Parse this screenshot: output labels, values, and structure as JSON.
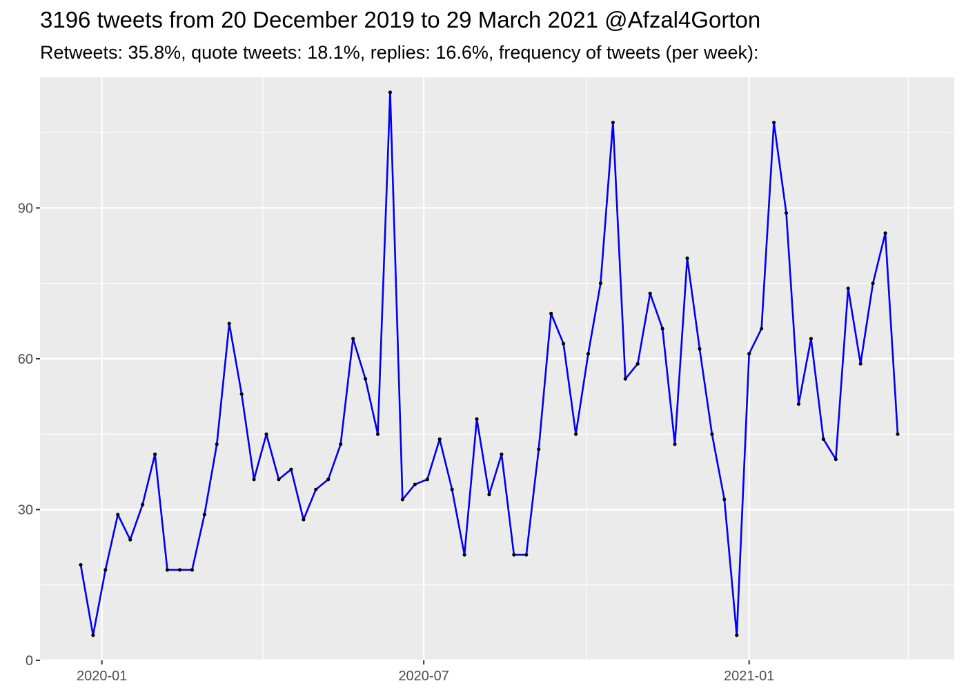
{
  "title": "3196 tweets from 20 December 2019 to 29 March 2021 @Afzal4Gorton",
  "subtitle": "Retweets: 35.8%, quote tweets: 18.1%, replies: 16.6%, frequency of tweets (per week):",
  "chart_data": {
    "type": "line",
    "title": "3196 tweets from 20 December 2019 to 29 March 2021 @Afzal4Gorton",
    "subtitle": "Retweets: 35.8%, quote tweets: 18.1%, replies: 16.6%, frequency of tweets (per week):",
    "xlabel": "",
    "ylabel": "",
    "x_tick_labels": [
      "2020-01",
      "2020-07",
      "2021-01"
    ],
    "y_tick_labels": [
      "0",
      "30",
      "60",
      "90"
    ],
    "ylim": [
      0,
      116
    ],
    "xlim": [
      "2019-11-27",
      "2021-04-27"
    ],
    "grid": true,
    "background": "#EBEBEB",
    "colors": {
      "line": "#0000EE",
      "points": "#000000"
    },
    "x": [
      "2019-12-20",
      "2019-12-27",
      "2020-01-03",
      "2020-01-10",
      "2020-01-17",
      "2020-01-24",
      "2020-01-31",
      "2020-02-07",
      "2020-02-14",
      "2020-02-21",
      "2020-02-28",
      "2020-03-06",
      "2020-03-13",
      "2020-03-20",
      "2020-03-27",
      "2020-04-03",
      "2020-04-10",
      "2020-04-17",
      "2020-04-24",
      "2020-05-01",
      "2020-05-08",
      "2020-05-15",
      "2020-05-22",
      "2020-05-29",
      "2020-06-05",
      "2020-06-12",
      "2020-06-19",
      "2020-06-26",
      "2020-07-03",
      "2020-07-10",
      "2020-07-17",
      "2020-07-24",
      "2020-07-31",
      "2020-08-07",
      "2020-08-14",
      "2020-08-21",
      "2020-08-28",
      "2020-09-04",
      "2020-09-11",
      "2020-09-18",
      "2020-09-25",
      "2020-10-02",
      "2020-10-09",
      "2020-10-16",
      "2020-10-23",
      "2020-10-30",
      "2020-11-06",
      "2020-11-13",
      "2020-11-20",
      "2020-11-27",
      "2020-12-04",
      "2020-12-11",
      "2020-12-18",
      "2020-12-25",
      "2021-01-01",
      "2021-01-08",
      "2021-01-15",
      "2021-01-22",
      "2021-01-29",
      "2021-02-05",
      "2021-02-12",
      "2021-02-19",
      "2021-02-26",
      "2021-03-05",
      "2021-03-12",
      "2021-03-19",
      "2021-03-26"
    ],
    "series": [
      {
        "values": [
          19,
          5,
          18,
          29,
          24,
          31,
          41,
          18,
          18,
          18,
          29,
          43,
          67,
          53,
          36,
          45,
          36,
          38,
          28,
          34,
          36,
          43,
          64,
          56,
          45,
          113,
          32,
          35,
          36,
          44,
          34,
          21,
          48,
          33,
          41,
          21,
          21,
          42,
          69,
          63,
          45,
          61,
          75,
          107,
          56,
          59,
          73,
          66,
          43,
          80,
          62,
          45,
          32,
          5,
          61,
          66,
          107,
          89,
          51,
          64,
          44,
          40,
          74,
          59,
          75,
          85,
          45
        ]
      }
    ]
  }
}
